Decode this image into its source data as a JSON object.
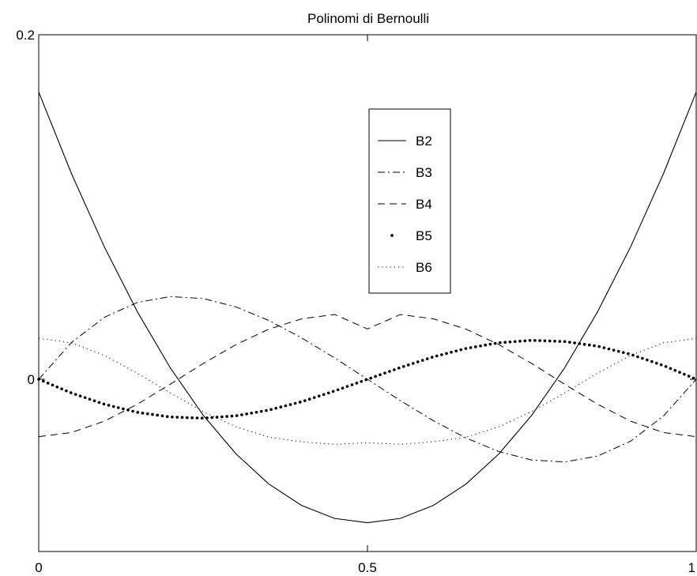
{
  "chart_data": {
    "type": "line",
    "title": "Polinomi di Bernoulli",
    "xlabel": "",
    "ylabel": "",
    "xlim": [
      0,
      1
    ],
    "ylim": [
      -0.1,
      0.2
    ],
    "xticks": [
      {
        "value": 0,
        "label": "0"
      },
      {
        "value": 0.5,
        "label": "0.5"
      },
      {
        "value": 1,
        "label": "1"
      }
    ],
    "yticks": [
      {
        "value": 0,
        "label": "0"
      },
      {
        "value": 0.2,
        "label": "0.2"
      }
    ],
    "grid": false,
    "legend_position": "upper-center",
    "x": [
      0,
      0.05,
      0.1,
      0.15,
      0.2,
      0.25,
      0.3,
      0.35,
      0.4,
      0.45,
      0.5,
      0.55,
      0.6,
      0.65,
      0.7,
      0.75,
      0.8,
      0.85,
      0.9,
      0.95,
      1
    ],
    "series": [
      {
        "name": "B2",
        "style": "solid",
        "values": [
          0.1667,
          0.1192,
          0.0767,
          0.0392,
          0.0067,
          -0.0208,
          -0.0433,
          -0.0608,
          -0.0733,
          -0.0808,
          -0.0833,
          -0.0808,
          -0.0733,
          -0.0608,
          -0.0433,
          -0.0208,
          0.0067,
          0.0392,
          0.0767,
          0.1192,
          0.1667
        ]
      },
      {
        "name": "B3",
        "style": "dash-dot",
        "values": [
          0,
          0.0214,
          0.036,
          0.0446,
          0.048,
          0.0469,
          0.042,
          0.0341,
          0.024,
          0.0124,
          0,
          -0.0124,
          -0.024,
          -0.0341,
          -0.042,
          -0.0469,
          -0.048,
          -0.0446,
          -0.036,
          -0.0214,
          0
        ]
      },
      {
        "name": "B4",
        "style": "dashed",
        "values": [
          -0.0333,
          -0.0309,
          -0.0243,
          -0.0145,
          -0.0029,
          0.0091,
          0.0201,
          0.0291,
          0.0351,
          0.0376,
          0.0292,
          0.0376,
          0.0351,
          0.0291,
          0.0201,
          0.0091,
          -0.0029,
          -0.0145,
          -0.0243,
          -0.0309,
          -0.0333
        ]
      },
      {
        "name": "B5",
        "style": "heavy-dots",
        "values": [
          0,
          -0.008,
          -0.0145,
          -0.0192,
          -0.0219,
          -0.0226,
          -0.0212,
          -0.0179,
          -0.013,
          -0.0068,
          0,
          0.0068,
          0.013,
          0.0179,
          0.0212,
          0.0226,
          0.0219,
          0.0192,
          0.0145,
          0.008,
          0
        ]
      },
      {
        "name": "B6",
        "style": "dotted",
        "values": [
          0.0238,
          0.0211,
          0.0138,
          0.0035,
          -0.0079,
          -0.0187,
          -0.0276,
          -0.0336,
          -0.0363,
          -0.0378,
          -0.0368,
          -0.0378,
          -0.0363,
          -0.0336,
          -0.0276,
          -0.0187,
          -0.0079,
          0.0035,
          0.0138,
          0.0211,
          0.0238
        ]
      }
    ]
  }
}
